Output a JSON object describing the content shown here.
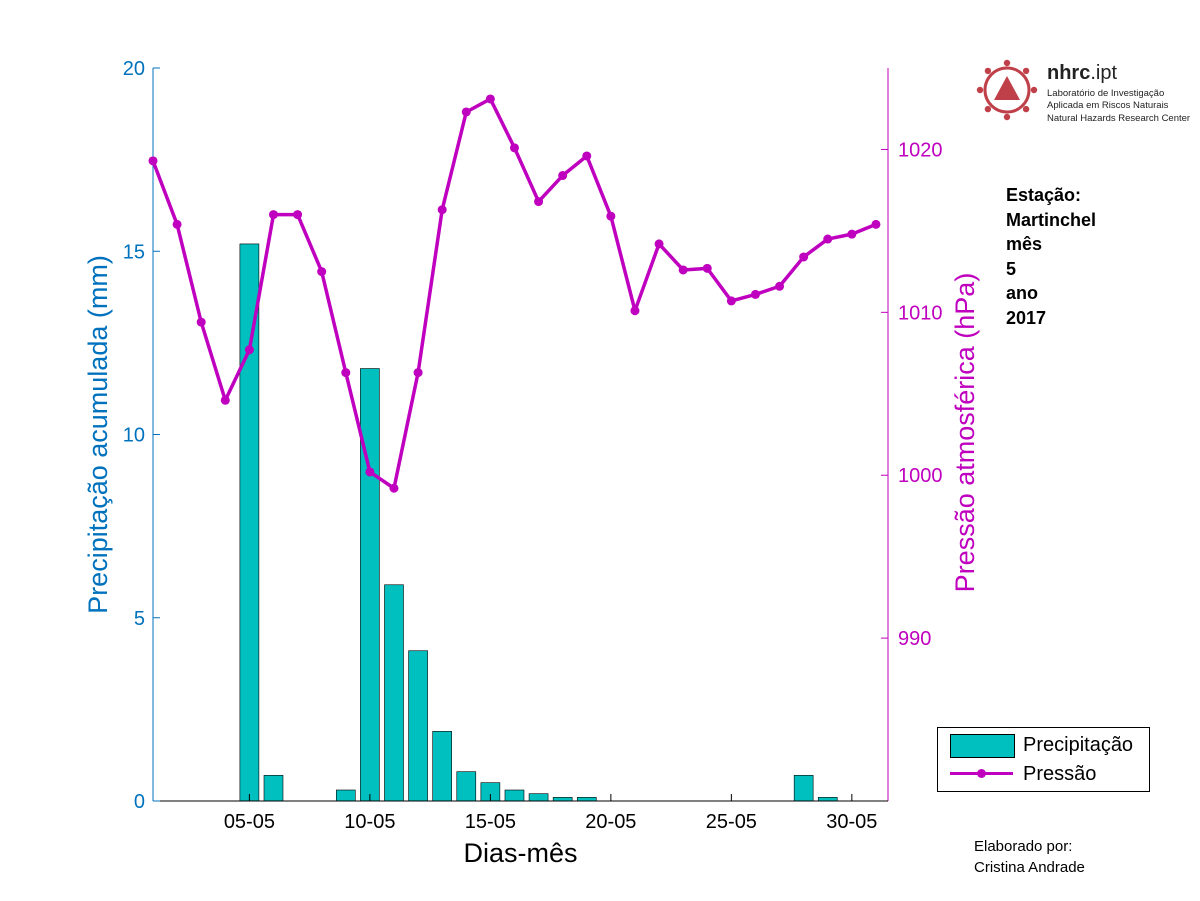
{
  "chart_data": {
    "type": "bar+line",
    "xlabel": "Dias-mês",
    "ylabel_left": "Precipitação acumulada (mm)",
    "ylabel_right": "Pressão atmosférica (hPa)",
    "ylim_left": [
      0,
      20
    ],
    "ylim_right": [
      980,
      1025
    ],
    "xlim": [
      1,
      31.5
    ],
    "x_ticks": [
      5,
      10,
      15,
      20,
      25,
      30
    ],
    "x_tick_labels": [
      "05-05",
      "10-05",
      "15-05",
      "20-05",
      "25-05",
      "30-05"
    ],
    "y_left_ticks": [
      0,
      5,
      10,
      15,
      20
    ],
    "y_left_tick_labels": [
      "0",
      "5",
      "10",
      "15",
      "20"
    ],
    "y_right_ticks": [
      990,
      1000,
      1010,
      1020
    ],
    "y_right_tick_labels": [
      "990",
      "1000",
      "1010",
      "1020"
    ],
    "series": [
      {
        "name": "Precipitação",
        "kind": "bar",
        "color": "#00bfbf",
        "axis": "left",
        "x": [
          1,
          2,
          3,
          4,
          5,
          6,
          7,
          8,
          9,
          10,
          11,
          12,
          13,
          14,
          15,
          16,
          17,
          18,
          19,
          20,
          21,
          22,
          23,
          24,
          25,
          26,
          27,
          28,
          29,
          30,
          31
        ],
        "values": [
          0,
          0,
          0,
          0,
          15.2,
          0.7,
          0,
          0,
          0.3,
          11.8,
          5.9,
          4.1,
          1.9,
          0.8,
          0.5,
          0.3,
          0.2,
          0.1,
          0.1,
          0,
          0,
          0,
          0,
          0,
          0,
          0,
          0,
          0.7,
          0.1,
          0,
          0
        ]
      },
      {
        "name": "Pressão",
        "kind": "line",
        "color": "#bf00bf",
        "axis": "right",
        "x": [
          1,
          2,
          3,
          4,
          5,
          6,
          7,
          8,
          9,
          10,
          11,
          12,
          13,
          14,
          15,
          16,
          17,
          18,
          19,
          20,
          21,
          22,
          23,
          24,
          25,
          26,
          27,
          28,
          29,
          30,
          31
        ],
        "values": [
          1019.3,
          1015.4,
          1009.4,
          1004.6,
          1007.7,
          1016.0,
          1016.0,
          1012.5,
          1006.3,
          1000.2,
          999.2,
          1006.3,
          1016.3,
          1022.3,
          1023.1,
          1020.1,
          1016.8,
          1018.4,
          1019.6,
          1015.9,
          1010.1,
          1014.2,
          1012.6,
          1012.7,
          1010.7,
          1011.1,
          1011.6,
          1013.4,
          1014.5,
          1014.8,
          1015.4
        ]
      }
    ],
    "legend": {
      "placement": "bottom-right (outside plot)",
      "entries": [
        "Precipitação",
        "Pressão"
      ]
    }
  },
  "info": {
    "lines": [
      "Estação:",
      "Martinchel",
      "mês",
      "5",
      "ano",
      "2017"
    ]
  },
  "logo": {
    "name_bold": "nhrc",
    "name_rest": ".ipt",
    "line1": "Laboratório de Investigação",
    "line2": "Aplicada em Riscos Naturais",
    "line3": "Natural Hazards Research Center",
    "icon": "hazard-triangle-cog-icon",
    "color": "#c0404a"
  },
  "credit": {
    "line1": "Elaborado por:",
    "line2": "Cristina Andrade"
  },
  "colors": {
    "left_axis": "#0072bd",
    "right_axis": "#bf00bf",
    "bar_fill": "#00bfbf"
  }
}
